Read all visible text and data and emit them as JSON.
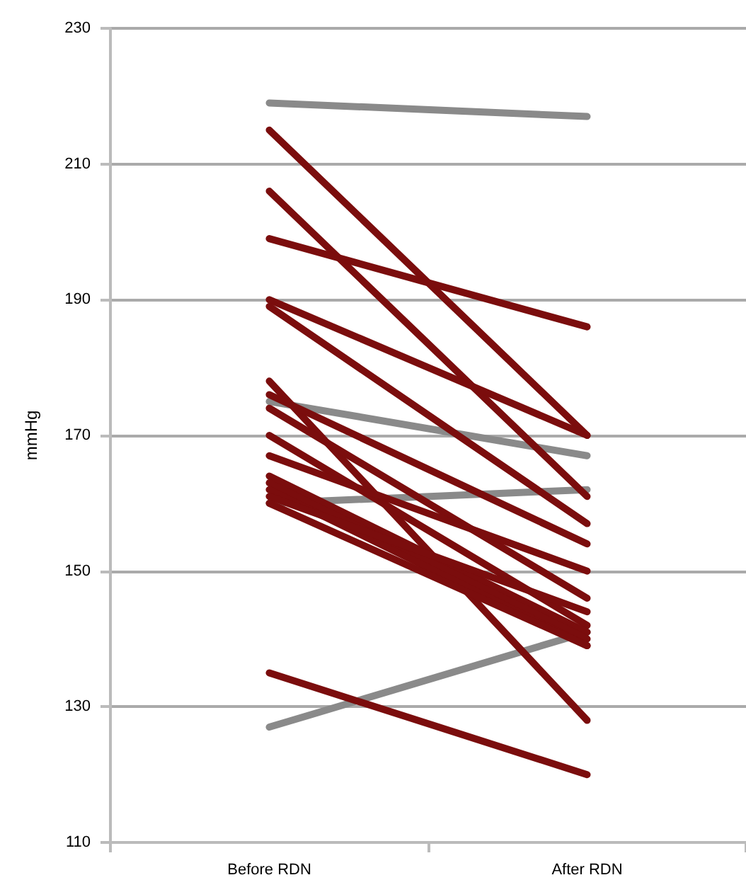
{
  "chart_data": {
    "type": "line",
    "ylabel": "mmHg",
    "categories": [
      "Before RDN",
      "After RDN"
    ],
    "ylim": [
      110,
      230
    ],
    "yticks": [
      110,
      130,
      150,
      170,
      190,
      210,
      230
    ],
    "grid": "y",
    "marker": "none",
    "line_style": "solid",
    "series": [
      {
        "color": "#8a8a8a",
        "values": [
          219,
          217
        ]
      },
      {
        "color": "#8a8a8a",
        "values": [
          175,
          167
        ]
      },
      {
        "color": "#8a8a8a",
        "values": [
          160,
          162
        ]
      },
      {
        "color": "#8a8a8a",
        "values": [
          127,
          141
        ]
      },
      {
        "color": "#7b0d0d",
        "values": [
          215,
          170
        ]
      },
      {
        "color": "#7b0d0d",
        "values": [
          206,
          161
        ]
      },
      {
        "color": "#7b0d0d",
        "values": [
          199,
          186
        ]
      },
      {
        "color": "#7b0d0d",
        "values": [
          190,
          170
        ]
      },
      {
        "color": "#7b0d0d",
        "values": [
          189,
          157
        ]
      },
      {
        "color": "#7b0d0d",
        "values": [
          178,
          128
        ]
      },
      {
        "color": "#7b0d0d",
        "values": [
          176,
          154
        ]
      },
      {
        "color": "#7b0d0d",
        "values": [
          174,
          146
        ]
      },
      {
        "color": "#7b0d0d",
        "values": [
          170,
          142
        ]
      },
      {
        "color": "#7b0d0d",
        "values": [
          167,
          150
        ]
      },
      {
        "color": "#7b0d0d",
        "values": [
          164,
          141
        ]
      },
      {
        "color": "#7b0d0d",
        "values": [
          163,
          140
        ]
      },
      {
        "color": "#7b0d0d",
        "values": [
          162,
          139
        ]
      },
      {
        "color": "#7b0d0d",
        "values": [
          161,
          144
        ]
      },
      {
        "color": "#7b0d0d",
        "values": [
          160,
          139
        ]
      },
      {
        "color": "#7b0d0d",
        "values": [
          135,
          120
        ]
      }
    ]
  }
}
